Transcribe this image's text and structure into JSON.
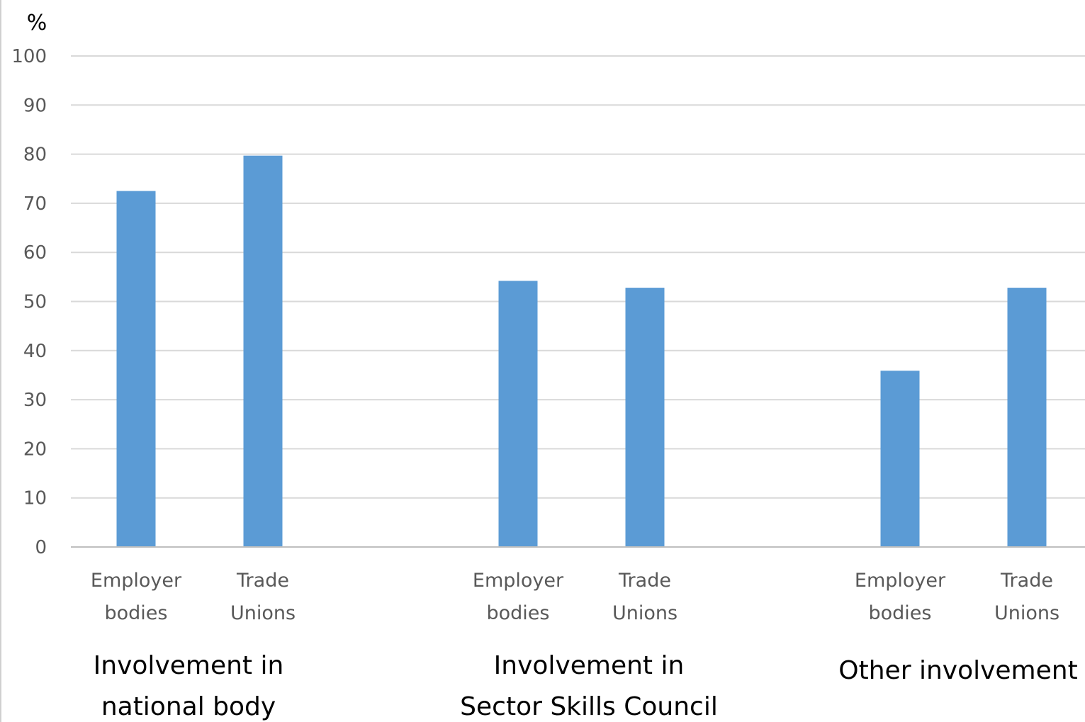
{
  "chart_data": {
    "type": "bar",
    "unit_label": "%",
    "ylim": [
      0,
      100
    ],
    "yticks": [
      0,
      10,
      20,
      30,
      40,
      50,
      60,
      70,
      80,
      90,
      100
    ],
    "grid": true,
    "legend": "none",
    "groups": [
      {
        "label_lines": [
          "Involvement in",
          "national body"
        ],
        "bars": [
          {
            "label_lines": [
              "Employer",
              "bodies"
            ],
            "value": 72.5
          },
          {
            "label_lines": [
              "Trade",
              "Unions"
            ],
            "value": 79.7
          }
        ]
      },
      {
        "label_lines": [
          "Involvement in",
          "Sector Skills Council"
        ],
        "bars": [
          {
            "label_lines": [
              "Employer",
              "bodies"
            ],
            "value": 54.2
          },
          {
            "label_lines": [
              "Trade",
              "Unions"
            ],
            "value": 52.8
          }
        ]
      },
      {
        "label_lines": [
          "Other involvement"
        ],
        "bars": [
          {
            "label_lines": [
              "Employer",
              "bodies"
            ],
            "value": 35.9
          },
          {
            "label_lines": [
              "Trade",
              "Unions"
            ],
            "value": 52.8
          }
        ]
      }
    ],
    "colors": {
      "bar": "#5B9BD5",
      "grid": "#D9D9D9",
      "axis": "#BFBFBF",
      "tick_text": "#595959"
    }
  }
}
